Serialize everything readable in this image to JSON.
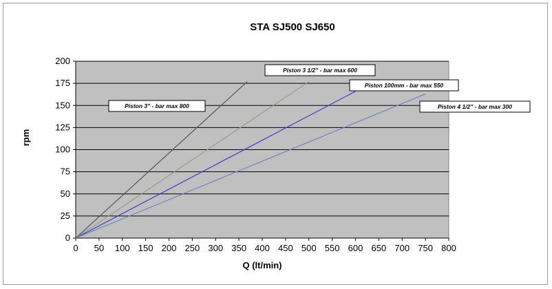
{
  "chart_data": {
    "type": "line",
    "title": "STA  SJ500 SJ650",
    "xlabel": "Q (lt/min)",
    "ylabel": "rpm",
    "xlim": [
      0,
      800
    ],
    "ylim": [
      0,
      200
    ],
    "x_ticks": [
      0,
      50,
      100,
      150,
      200,
      250,
      300,
      350,
      400,
      450,
      500,
      550,
      600,
      650,
      700,
      750,
      800
    ],
    "y_ticks": [
      0,
      25,
      50,
      75,
      100,
      125,
      150,
      175,
      200
    ],
    "grid": "horizontal",
    "plot_background": "#c0c0c0",
    "series": [
      {
        "label": "Piston  3\" - bar max 800",
        "color": "#555555",
        "x": [
          0,
          368
        ],
        "y": [
          0,
          177
        ]
      },
      {
        "label": "Piston  3 1/2\" - bar max 600",
        "color": "#9a9a80",
        "x": [
          0,
          500
        ],
        "y": [
          0,
          177
        ]
      },
      {
        "label": "Piston  100mm - bar max 550",
        "color": "#3c3ccc",
        "x": [
          0,
          600
        ],
        "y": [
          0,
          166
        ]
      },
      {
        "label": "Piston  4 1/2\" - bar max 300",
        "color": "#6f86b8",
        "x": [
          0,
          750
        ],
        "y": [
          0,
          163
        ]
      }
    ]
  }
}
